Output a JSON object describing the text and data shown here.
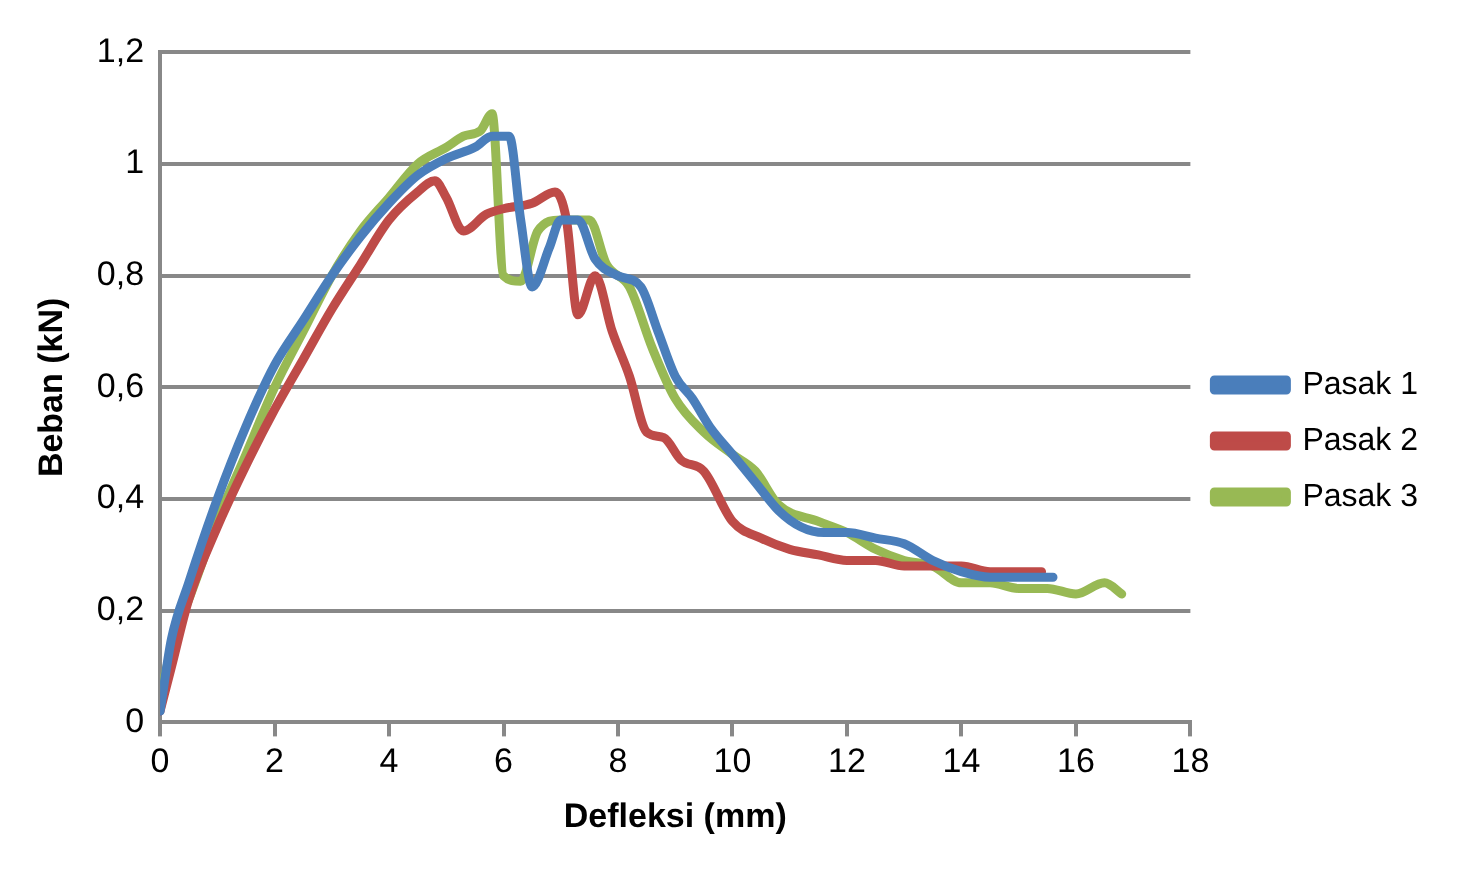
{
  "chart_data": {
    "type": "line",
    "xlabel": "Defleksi (mm)",
    "ylabel": "Beban (kN)",
    "xlim": [
      0,
      18
    ],
    "xticks": [
      0,
      2,
      4,
      6,
      8,
      10,
      12,
      14,
      16,
      18
    ],
    "ylim": [
      0,
      1.2
    ],
    "yticks": [
      0,
      {
        "value": 0.2,
        "label": "0,2"
      },
      {
        "value": 0.4,
        "label": "0,4"
      },
      {
        "value": 0.6,
        "label": "0,6"
      },
      {
        "value": 0.8,
        "label": "0,8"
      },
      1,
      {
        "value": 1.2,
        "label": "1,2"
      }
    ],
    "grid": "y",
    "legend": "right",
    "marker": "none",
    "line_style": "solid",
    "series": [
      {
        "name": "Pasak 1",
        "color": "#4a7ebb",
        "x": [
          0,
          0.2,
          0.5,
          1,
          1.5,
          2,
          2.5,
          3,
          3.5,
          4,
          4.5,
          5,
          5.5,
          5.8,
          6.1,
          6.3,
          6.5,
          6.8,
          7,
          7.3,
          7.6,
          8,
          8.4,
          8.7,
          9,
          9.3,
          9.6,
          10,
          10.4,
          10.8,
          11.2,
          11.6,
          12,
          12.5,
          13,
          13.5,
          14,
          14.5,
          15,
          15.6
        ],
        "values": [
          0.02,
          0.15,
          0.25,
          0.4,
          0.53,
          0.64,
          0.72,
          0.8,
          0.87,
          0.93,
          0.98,
          1.01,
          1.03,
          1.05,
          1.05,
          0.9,
          0.78,
          0.85,
          0.9,
          0.9,
          0.83,
          0.8,
          0.78,
          0.7,
          0.62,
          0.58,
          0.53,
          0.48,
          0.43,
          0.38,
          0.35,
          0.34,
          0.34,
          0.33,
          0.32,
          0.29,
          0.27,
          0.26,
          0.26,
          0.26
        ]
      },
      {
        "name": "Pasak 2",
        "color": "#be4b48",
        "x": [
          0,
          0.2,
          0.5,
          1,
          1.5,
          2,
          2.5,
          3,
          3.5,
          4,
          4.5,
          4.8,
          5,
          5.3,
          5.7,
          6,
          6.5,
          6.9,
          7.1,
          7.3,
          7.6,
          7.9,
          8.2,
          8.5,
          8.8,
          9.1,
          9.5,
          10,
          10.5,
          11,
          11.5,
          12,
          12.5,
          13,
          13.5,
          14,
          14.5,
          15,
          15.4
        ],
        "values": [
          0.02,
          0.1,
          0.22,
          0.35,
          0.46,
          0.56,
          0.65,
          0.74,
          0.82,
          0.9,
          0.95,
          0.97,
          0.94,
          0.88,
          0.91,
          0.92,
          0.93,
          0.95,
          0.9,
          0.73,
          0.8,
          0.7,
          0.62,
          0.52,
          0.51,
          0.47,
          0.45,
          0.36,
          0.33,
          0.31,
          0.3,
          0.29,
          0.29,
          0.28,
          0.28,
          0.28,
          0.27,
          0.27,
          0.27
        ]
      },
      {
        "name": "Pasak 3",
        "color": "#98b954",
        "x": [
          0,
          0.3,
          0.5,
          1,
          1.5,
          2,
          2.5,
          3,
          3.5,
          4,
          4.5,
          5,
          5.3,
          5.6,
          5.8,
          6,
          6.3,
          6.6,
          7,
          7.5,
          7.8,
          8.2,
          8.6,
          9,
          9.5,
          10,
          10.4,
          10.8,
          11.5,
          12,
          12.5,
          13,
          13.5,
          14,
          14.5,
          15,
          15.5,
          16,
          16.5,
          16.8
        ],
        "values": [
          0.05,
          0.17,
          0.22,
          0.36,
          0.48,
          0.6,
          0.7,
          0.8,
          0.88,
          0.94,
          1.0,
          1.03,
          1.05,
          1.06,
          1.09,
          0.8,
          0.79,
          0.88,
          0.9,
          0.9,
          0.82,
          0.78,
          0.67,
          0.58,
          0.52,
          0.48,
          0.45,
          0.39,
          0.36,
          0.34,
          0.31,
          0.29,
          0.28,
          0.25,
          0.25,
          0.24,
          0.24,
          0.23,
          0.25,
          0.23
        ]
      }
    ]
  }
}
